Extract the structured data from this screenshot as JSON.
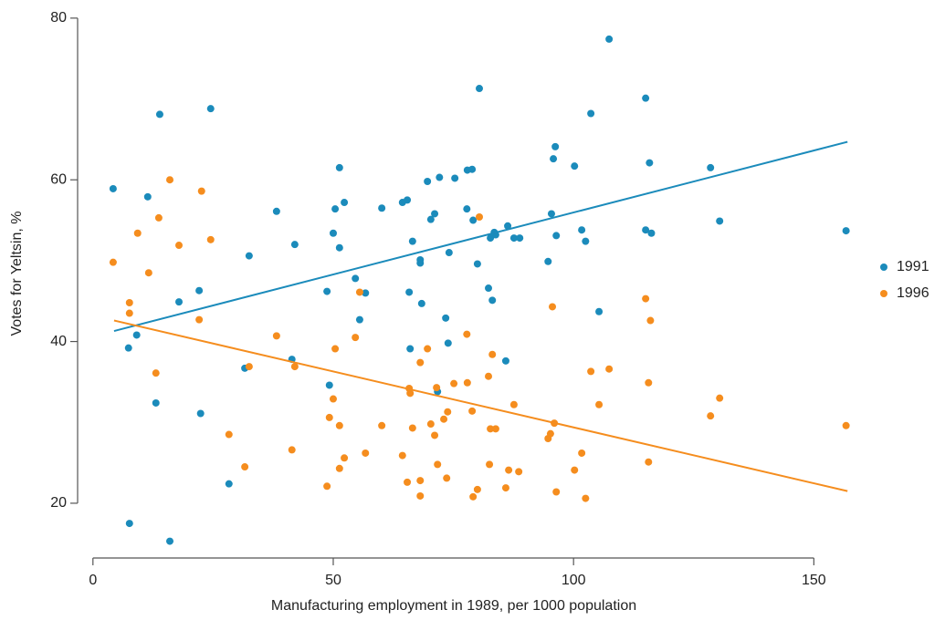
{
  "chart_data": {
    "type": "scatter",
    "x_label": "Manufacturing employment in 1989, per 1000 population",
    "y_label": "Votes for Yeltsin, %",
    "xlim": [
      -3,
      160
    ],
    "ylim": [
      13,
      81
    ],
    "xticks": [
      0,
      50,
      100,
      150
    ],
    "yticks": [
      20,
      40,
      60,
      80
    ],
    "grid": false,
    "legend": "right",
    "series": [
      {
        "name": "1991",
        "color": "#1b8bbb",
        "x": [
          4.2,
          7.4,
          7.6,
          9.1,
          11.4,
          13.9,
          13.1,
          16.0,
          17.9,
          22.1,
          22.4,
          24.5,
          28.3,
          31.6,
          32.5,
          38.2,
          41.4,
          42.0,
          48.7,
          49.2,
          50.0,
          50.4,
          51.3,
          51.3,
          52.3,
          54.6,
          55.5,
          56.7,
          60.1,
          64.4,
          65.4,
          65.8,
          66.0,
          66.5,
          68.1,
          68.1,
          68.4,
          69.6,
          70.3,
          71.1,
          71.7,
          72.1,
          73.4,
          73.9,
          74.1,
          75.3,
          77.8,
          77.9,
          78.9,
          79.1,
          80.0,
          80.4,
          82.3,
          82.7,
          83.1,
          83.5,
          83.8,
          85.9,
          86.3,
          87.6,
          88.8,
          94.7,
          95.4,
          95.8,
          96.2,
          96.4,
          100.2,
          101.7,
          102.5,
          103.6,
          105.3,
          107.4,
          115.0,
          115.0,
          115.8,
          116.2,
          128.5,
          130.4,
          156.7
        ],
        "values": [
          58.9,
          39.2,
          17.5,
          40.8,
          57.9,
          68.1,
          32.4,
          15.3,
          44.9,
          46.3,
          31.1,
          68.8,
          22.4,
          36.7,
          50.6,
          56.1,
          37.8,
          52.0,
          46.2,
          34.6,
          53.4,
          56.4,
          61.5,
          51.6,
          57.2,
          47.8,
          42.7,
          46.0,
          56.5,
          57.2,
          57.5,
          46.1,
          39.1,
          52.4,
          50.1,
          49.7,
          44.7,
          59.8,
          55.1,
          55.8,
          33.8,
          60.3,
          42.9,
          39.8,
          51.0,
          60.2,
          56.4,
          61.2,
          61.3,
          55.0,
          49.6,
          71.3,
          46.6,
          52.8,
          45.1,
          53.5,
          53.2,
          37.6,
          54.3,
          52.8,
          52.8,
          49.9,
          55.8,
          62.6,
          64.1,
          53.1,
          61.7,
          53.8,
          52.4,
          68.2,
          43.7,
          77.4,
          70.1,
          53.8,
          62.1,
          53.4,
          61.5,
          54.9,
          53.7
        ],
        "trend": {
          "x": [
            4.4,
            157
          ],
          "values": [
            41.3,
            64.7
          ]
        }
      },
      {
        "name": "1996",
        "color": "#f58d1e",
        "x": [
          4.2,
          7.6,
          7.6,
          9.3,
          11.6,
          13.1,
          13.7,
          16.0,
          17.9,
          22.1,
          22.6,
          24.5,
          28.3,
          31.6,
          32.5,
          38.2,
          41.4,
          42.0,
          48.7,
          49.2,
          50.0,
          50.4,
          51.3,
          51.3,
          52.3,
          54.6,
          55.5,
          56.7,
          60.1,
          64.4,
          65.4,
          65.8,
          66.0,
          66.5,
          68.1,
          68.1,
          68.1,
          69.6,
          70.3,
          71.1,
          71.5,
          71.7,
          73.0,
          73.6,
          73.8,
          75.1,
          77.8,
          77.9,
          78.9,
          79.1,
          80.0,
          80.4,
          82.3,
          82.5,
          82.7,
          83.1,
          83.8,
          85.9,
          86.5,
          87.6,
          88.6,
          94.7,
          95.2,
          95.6,
          96.0,
          96.4,
          100.2,
          101.7,
          102.5,
          103.6,
          105.3,
          107.4,
          115.0,
          115.6,
          115.6,
          116.0,
          128.5,
          130.4,
          156.7
        ],
        "values": [
          49.8,
          44.8,
          43.5,
          53.4,
          48.5,
          36.1,
          55.3,
          60.0,
          51.9,
          42.7,
          58.6,
          52.6,
          28.5,
          24.5,
          36.9,
          40.7,
          26.6,
          36.9,
          22.1,
          30.6,
          32.9,
          39.1,
          24.3,
          29.6,
          25.6,
          40.5,
          46.1,
          26.2,
          29.6,
          25.9,
          22.6,
          34.2,
          33.6,
          29.3,
          22.8,
          20.9,
          37.4,
          39.1,
          29.8,
          28.4,
          34.3,
          24.8,
          30.4,
          23.1,
          31.3,
          34.8,
          40.9,
          34.9,
          31.4,
          20.8,
          21.7,
          55.4,
          35.7,
          24.8,
          29.2,
          38.4,
          29.2,
          21.9,
          24.1,
          32.2,
          23.9,
          28.0,
          28.6,
          44.3,
          29.9,
          21.4,
          24.1,
          26.2,
          20.6,
          36.3,
          32.2,
          36.6,
          45.3,
          34.9,
          25.1,
          42.6,
          30.8,
          33.0,
          29.6
        ],
        "trend": {
          "x": [
            4.4,
            157
          ],
          "values": [
            42.6,
            21.5
          ]
        }
      }
    ]
  }
}
